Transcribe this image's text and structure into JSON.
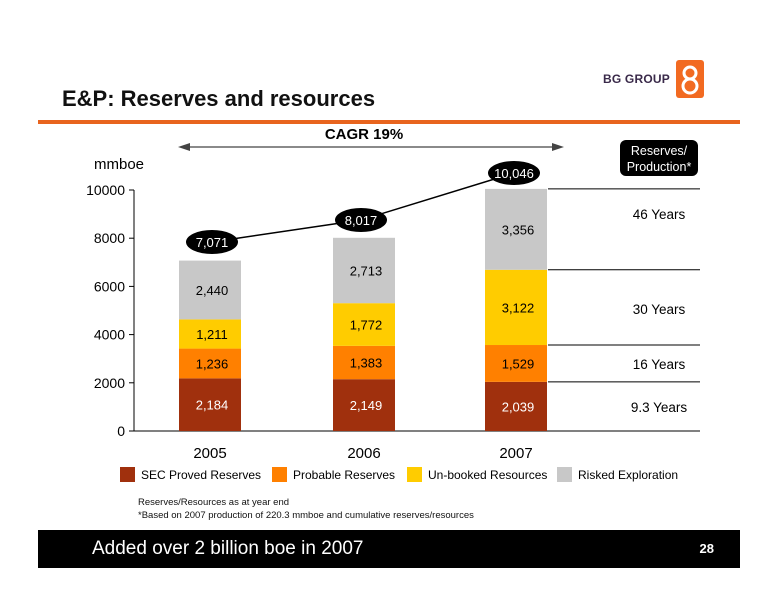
{
  "brand": {
    "logo_text": "BG GROUP",
    "accent": "#e8641e"
  },
  "title": "E&P: Reserves and resources",
  "chart_data": {
    "type": "bar",
    "stacked": true,
    "categories": [
      "2005",
      "2006",
      "2007"
    ],
    "series": [
      {
        "name": "SEC Proved Reserves",
        "color": "#a0300d",
        "values": [
          2184,
          2149,
          2039
        ],
        "labels": [
          "2,184",
          "2,149",
          "2,039"
        ]
      },
      {
        "name": "Probable Reserves",
        "color": "#ff8000",
        "values": [
          1236,
          1383,
          1529
        ],
        "labels": [
          "1,236",
          "1,383",
          "1,529"
        ]
      },
      {
        "name": "Un-booked Resources",
        "color": "#ffcc00",
        "values": [
          1211,
          1772,
          3122
        ],
        "labels": [
          "1,211",
          "1,772",
          "3,122"
        ]
      },
      {
        "name": "Risked Exploration",
        "color": "#c8c8c8",
        "values": [
          2440,
          2713,
          3356
        ],
        "labels": [
          "2,440",
          "2,713",
          "3,356"
        ]
      }
    ],
    "totals": [
      7071,
      8017,
      10046
    ],
    "total_labels": [
      "7,071",
      "8,017",
      "10,046"
    ],
    "ylabel": "mmboe",
    "ylim": [
      0,
      10000
    ],
    "yticks": [
      0,
      2000,
      4000,
      6000,
      8000,
      10000
    ],
    "ytick_labels": [
      "0",
      "2000",
      "4000",
      "6000",
      "8000",
      "10000"
    ],
    "cagr_label": "CAGR 19%",
    "rp_header": "Reserves/\nProduction*",
    "rp_values": [
      {
        "label": "46 Years",
        "at": 9000
      },
      {
        "label": "30 Years",
        "at": 5060
      },
      {
        "label": "16 Years",
        "at": 2780
      },
      {
        "label": "9.3 Years",
        "at": 1000
      }
    ],
    "rp_dividers": [
      10046,
      6690,
      3568,
      2039
    ],
    "legend": "bottom",
    "grid": false
  },
  "notes": [
    "Reserves/Resources as at year end",
    "*Based on 2007 production of 220.3 mmboe and cumulative reserves/resources"
  ],
  "footer": {
    "text": "Added over 2 billion boe in 2007",
    "page": "28"
  }
}
